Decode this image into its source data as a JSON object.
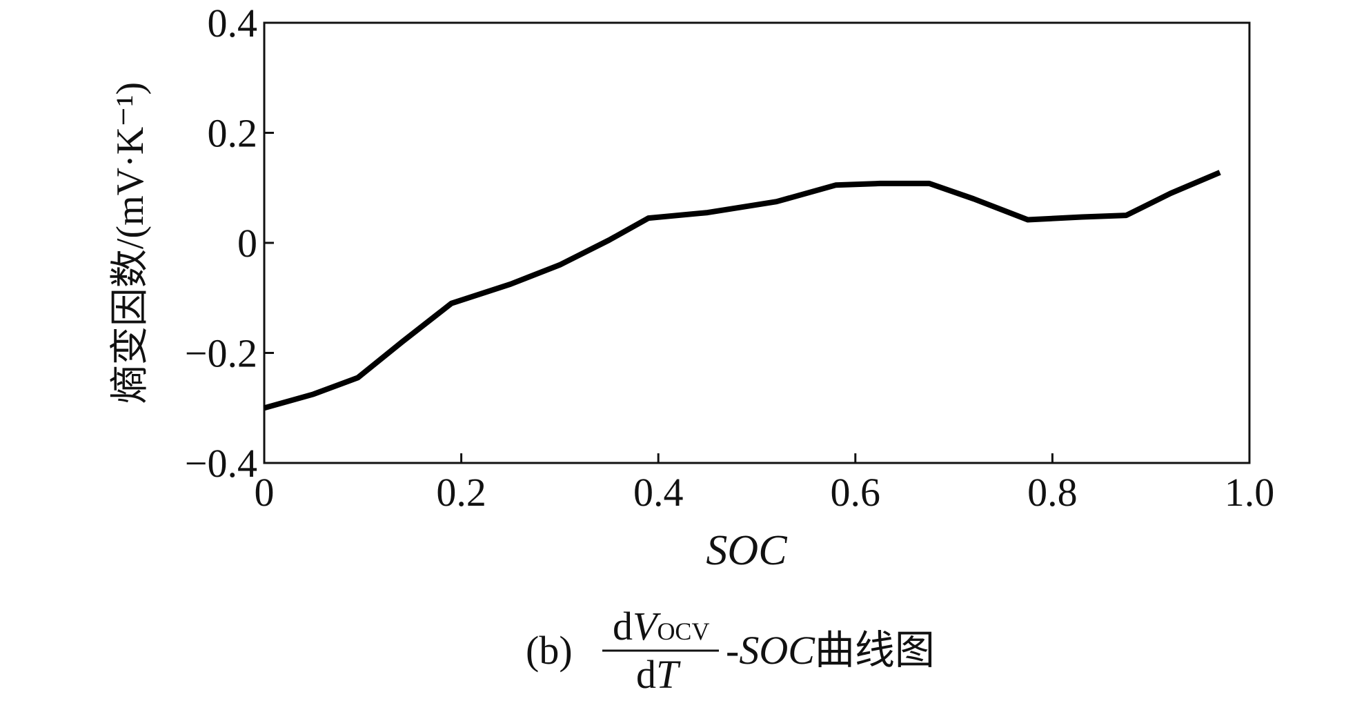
{
  "chart_data": {
    "type": "line",
    "title": "",
    "xlabel": "SOC",
    "ylabel": "熵变因数/(mV·K⁻¹)",
    "xlim": [
      0,
      1.0
    ],
    "ylim": [
      -0.4,
      0.4
    ],
    "x_ticks": [
      "0",
      "0.2",
      "0.4",
      "0.6",
      "0.8",
      "1.0"
    ],
    "y_ticks": [
      "0.4",
      "0.2",
      "0",
      "−0.2",
      "−0.4"
    ],
    "grid": false,
    "line_color": "#000000",
    "series": [
      {
        "x": [
          0.0,
          0.05,
          0.095,
          0.14,
          0.19,
          0.25,
          0.3,
          0.35,
          0.39,
          0.45,
          0.52,
          0.58,
          0.625,
          0.675,
          0.72,
          0.775,
          0.83,
          0.875,
          0.92,
          0.97
        ],
        "values": [
          -0.3,
          -0.275,
          -0.245,
          -0.18,
          -0.11,
          -0.075,
          -0.04,
          0.005,
          0.045,
          0.055,
          0.075,
          0.105,
          0.108,
          0.108,
          0.08,
          0.042,
          0.047,
          0.05,
          0.09,
          0.128
        ]
      }
    ]
  },
  "caption": {
    "prefix": "(b)",
    "frac_num_d": "d",
    "frac_num_v": "V",
    "frac_num_sub": "OCV",
    "frac_den_d": "d",
    "frac_den_t": "T",
    "suffix_dash": "-",
    "suffix_soc": "SOC",
    "suffix_text": "曲线图"
  }
}
